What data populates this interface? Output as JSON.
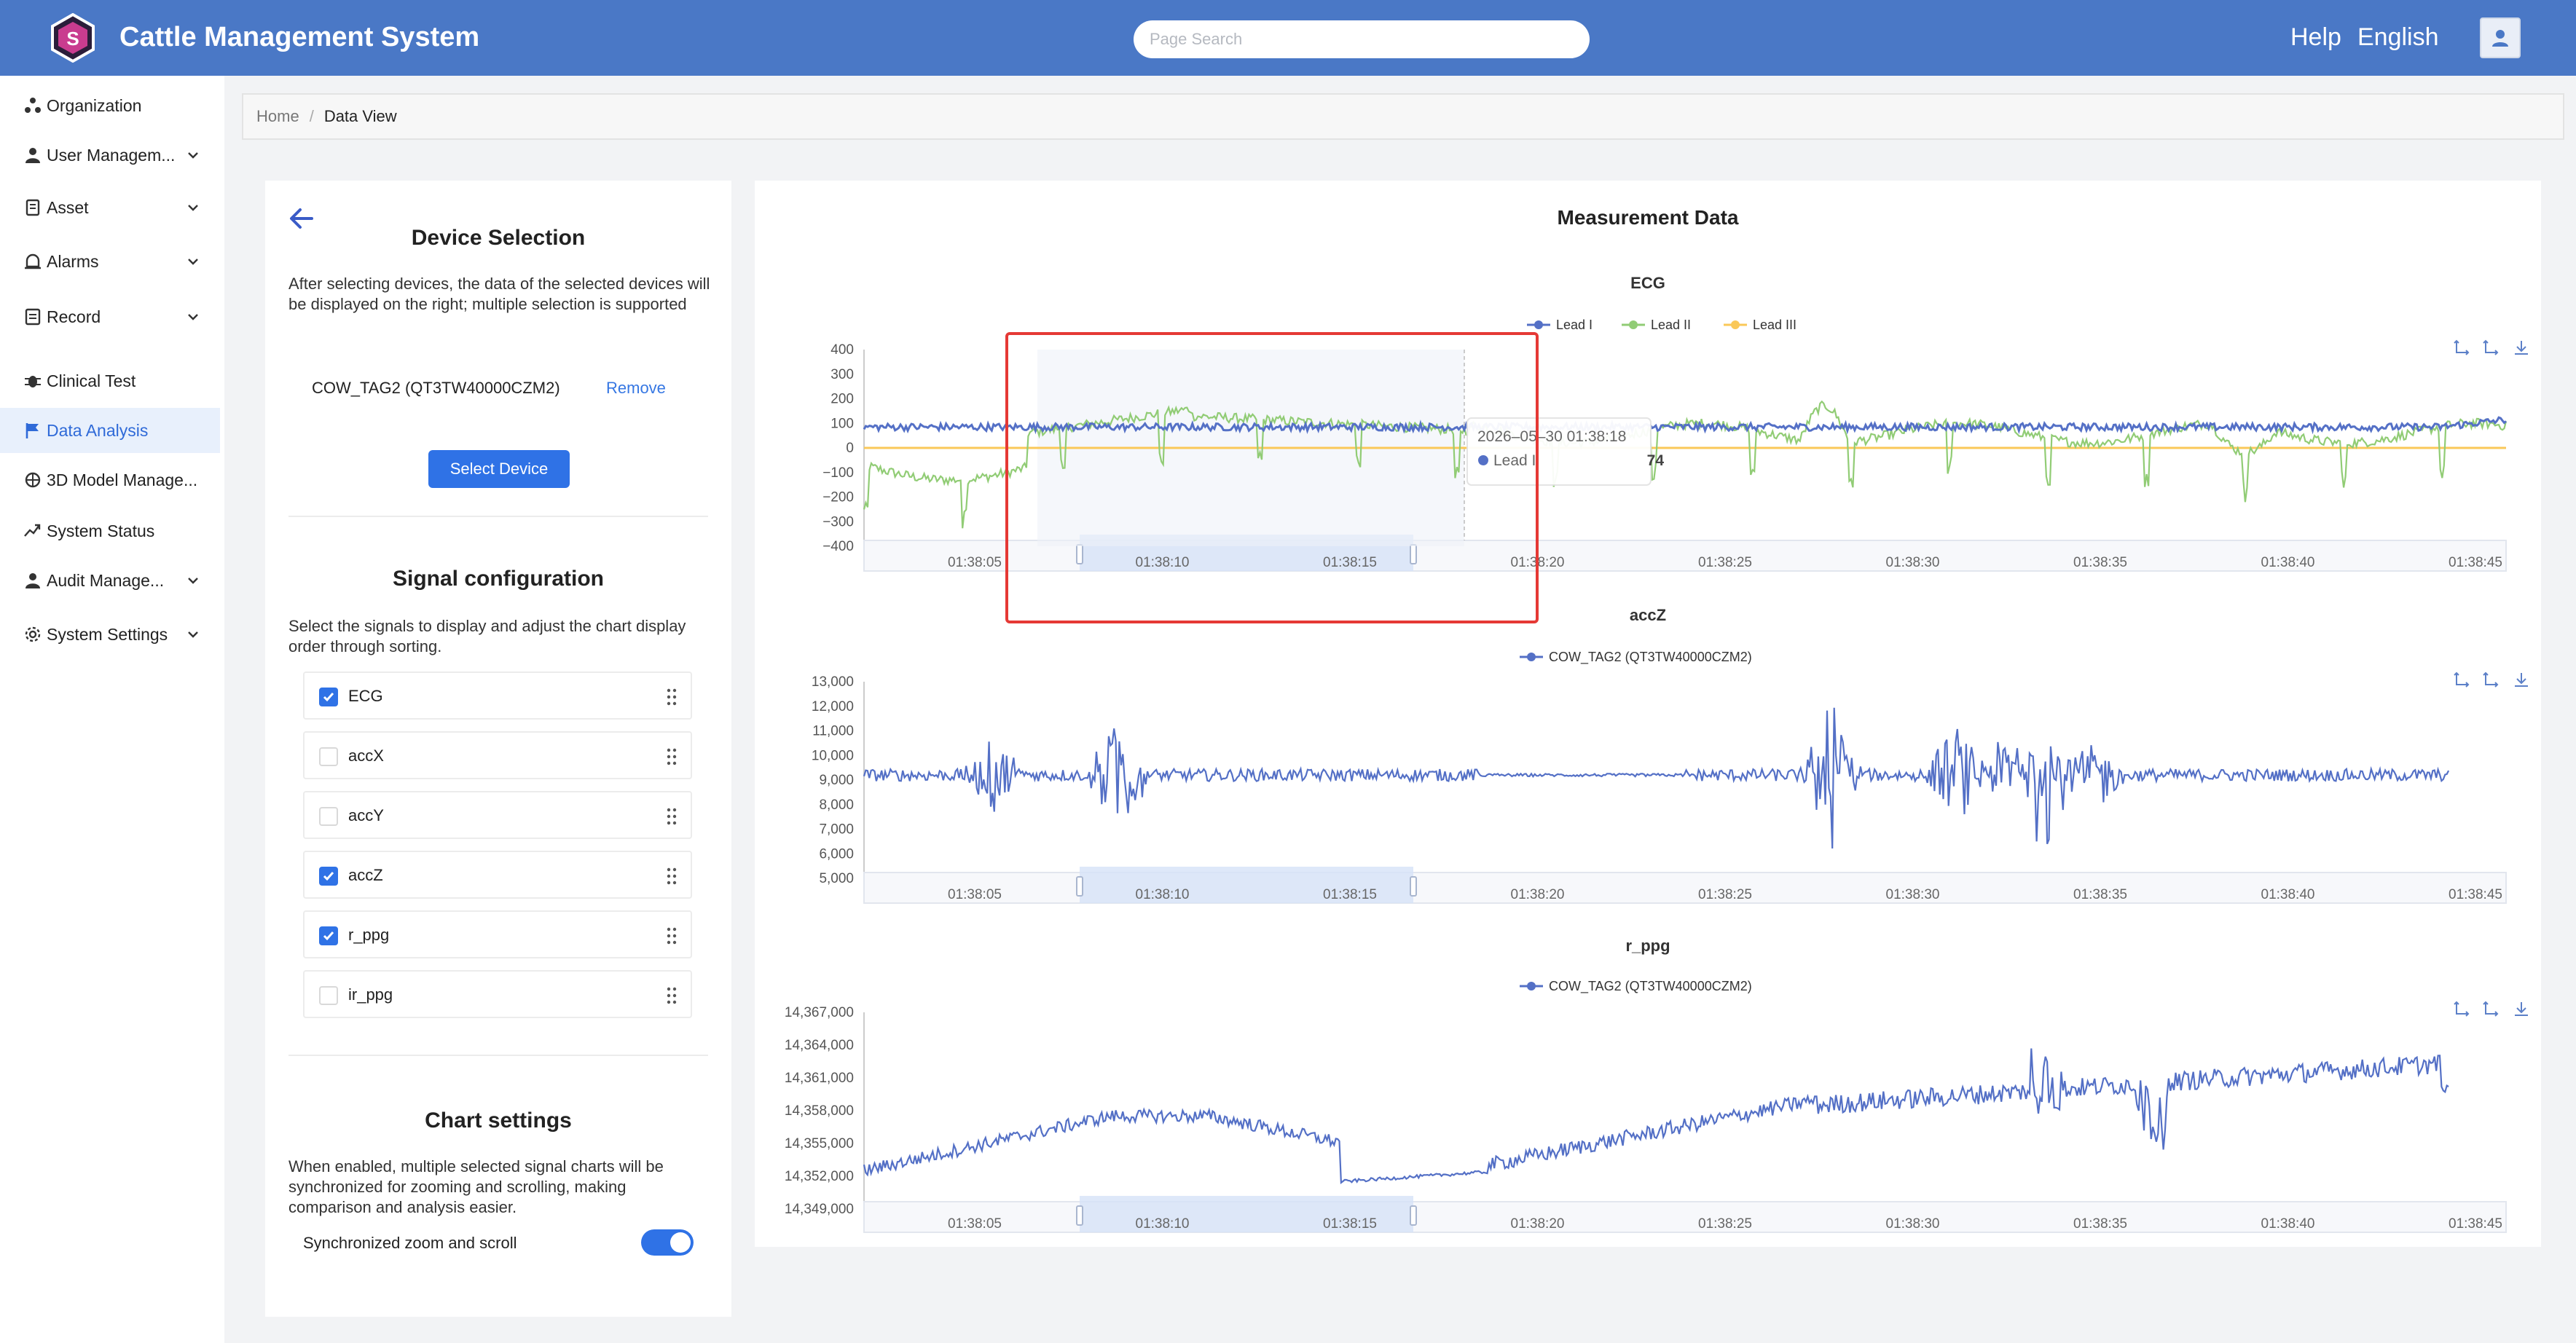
{
  "header": {
    "title": "Cattle Management System",
    "search_placeholder": "Page Search",
    "help_label": "Help",
    "language_label": "English"
  },
  "sidebar": {
    "items": [
      {
        "label": "Organization",
        "icon": "organization-icon",
        "expandable": false,
        "active": false
      },
      {
        "label": "User Managem...",
        "icon": "user-icon",
        "expandable": true,
        "active": false
      },
      {
        "label": "Asset",
        "icon": "asset-icon",
        "expandable": true,
        "active": false
      },
      {
        "label": "Alarms",
        "icon": "alarm-icon",
        "expandable": true,
        "active": false
      },
      {
        "label": "Record",
        "icon": "record-icon",
        "expandable": true,
        "active": false
      },
      {
        "label": "Clinical Test",
        "icon": "bug-icon",
        "expandable": false,
        "active": false
      },
      {
        "label": "Data Analysis",
        "icon": "flag-icon",
        "expandable": false,
        "active": true
      },
      {
        "label": "3D Model Manage...",
        "icon": "model-icon",
        "expandable": false,
        "active": false
      },
      {
        "label": "System Status",
        "icon": "status-icon",
        "expandable": false,
        "active": false
      },
      {
        "label": "Audit Manage...",
        "icon": "audit-icon",
        "expandable": true,
        "active": false
      },
      {
        "label": "System Settings",
        "icon": "gear-icon",
        "expandable": true,
        "active": false
      }
    ]
  },
  "breadcrumb": {
    "home": "Home",
    "separator": "/",
    "current": "Data View"
  },
  "device_selection": {
    "title": "Device Selection",
    "description": "After selecting devices, the data of the selected devices will be displayed on the right; multiple selection is supported",
    "device": "COW_TAG2 (QT3TW40000CZM2)",
    "remove_label": "Remove",
    "select_button": "Select Device"
  },
  "signal_config": {
    "title": "Signal configuration",
    "description": "Select the signals to display and adjust the chart display order through sorting.",
    "signals": [
      {
        "label": "ECG",
        "checked": true
      },
      {
        "label": "accX",
        "checked": false
      },
      {
        "label": "accY",
        "checked": false
      },
      {
        "label": "accZ",
        "checked": true
      },
      {
        "label": "r_ppg",
        "checked": true
      },
      {
        "label": "ir_ppg",
        "checked": false
      }
    ]
  },
  "chart_settings": {
    "title": "Chart settings",
    "description": "When enabled, multiple selected signal charts will be synchronized for zooming and scrolling, making comparison and analysis easier.",
    "sync_label": "Synchronized zoom and scroll",
    "sync_enabled": true
  },
  "measurement": {
    "title": "Measurement Data"
  },
  "colors": {
    "header": "#4a78c6",
    "accent": "#2f72e6",
    "lead1": "#5470c6",
    "lead2": "#91cc75",
    "lead3": "#fac858",
    "highlight_box": "#e53935"
  },
  "chart_data": [
    {
      "type": "line",
      "title": "ECG",
      "legend_position": "top-center",
      "series": [
        {
          "name": "Lead I"
        },
        {
          "name": "Lead II"
        },
        {
          "name": "Lead III"
        }
      ],
      "yticks": [
        "400",
        "300",
        "200",
        "100",
        "0",
        "−100",
        "−200",
        "−300",
        "−400"
      ],
      "ylim": [
        -400,
        400
      ],
      "xticks": [
        "01:38:05",
        "01:38:10",
        "01:38:15",
        "01:38:20",
        "01:38:25",
        "01:38:30",
        "01:38:35",
        "01:38:40",
        "01:38:45"
      ],
      "zoom_window": [
        "01:38:10",
        "01:38:15"
      ],
      "tooltip": {
        "time": "2026–05–30 01:38:18",
        "series": "Lead I",
        "value": "74"
      }
    },
    {
      "type": "line",
      "title": "accZ",
      "legend_position": "top-center",
      "series": [
        {
          "name": "COW_TAG2 (QT3TW40000CZM2)"
        }
      ],
      "yticks": [
        "13,000",
        "12,000",
        "11,000",
        "10,000",
        "9,000",
        "8,000",
        "7,000",
        "6,000",
        "5,000"
      ],
      "ylim": [
        5000,
        13000
      ],
      "xticks": [
        "01:38:05",
        "01:38:10",
        "01:38:15",
        "01:38:20",
        "01:38:25",
        "01:38:30",
        "01:38:35",
        "01:38:40",
        "01:38:45"
      ],
      "zoom_window": [
        "01:38:10",
        "01:38:15"
      ]
    },
    {
      "type": "line",
      "title": "r_ppg",
      "legend_position": "top-center",
      "series": [
        {
          "name": "COW_TAG2 (QT3TW40000CZM2)"
        }
      ],
      "yticks": [
        "14,367,000",
        "14,364,000",
        "14,361,000",
        "14,358,000",
        "14,355,000",
        "14,352,000",
        "14,349,000"
      ],
      "ylim": [
        14349000,
        14367000
      ],
      "xticks": [
        "01:38:05",
        "01:38:10",
        "01:38:15",
        "01:38:20",
        "01:38:25",
        "01:38:30",
        "01:38:35",
        "01:38:40",
        "01:38:45"
      ],
      "zoom_window": [
        "01:38:10",
        "01:38:15"
      ]
    }
  ]
}
